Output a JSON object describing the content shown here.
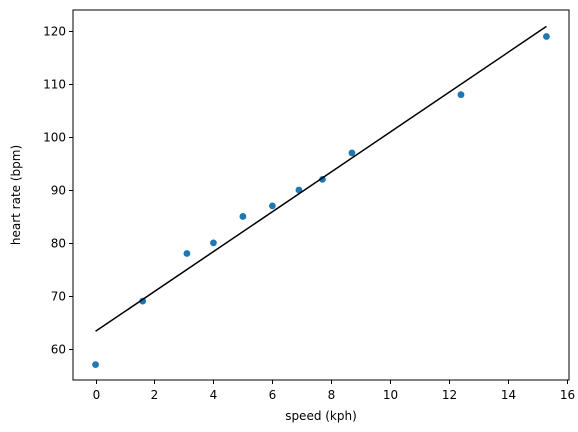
{
  "chart_data": {
    "type": "scatter",
    "title": "",
    "xlabel": "speed (kph)",
    "ylabel": "heart rate (bpm)",
    "xlim": [
      -0.7656,
      16.0656
    ],
    "ylim": [
      54.1,
      124.0
    ],
    "x_ticks": [
      0,
      2,
      4,
      6,
      8,
      10,
      12,
      14,
      16
    ],
    "y_ticks": [
      60,
      70,
      80,
      90,
      100,
      110,
      120
    ],
    "grid": false,
    "legend": "none",
    "series": [
      {
        "kind": "points",
        "color": "#1f77b4",
        "x": [
          0,
          1.6,
          3.1,
          4,
          5,
          6,
          6.9,
          7.7,
          8.7,
          12.4,
          15.3
        ],
        "y": [
          57,
          69,
          78,
          80,
          85,
          87,
          90,
          92,
          97,
          108,
          119
        ]
      },
      {
        "kind": "fit-line",
        "color": "#000000",
        "x": [
          0,
          15.3
        ],
        "y": [
          63.3,
          120.9
        ]
      }
    ]
  }
}
